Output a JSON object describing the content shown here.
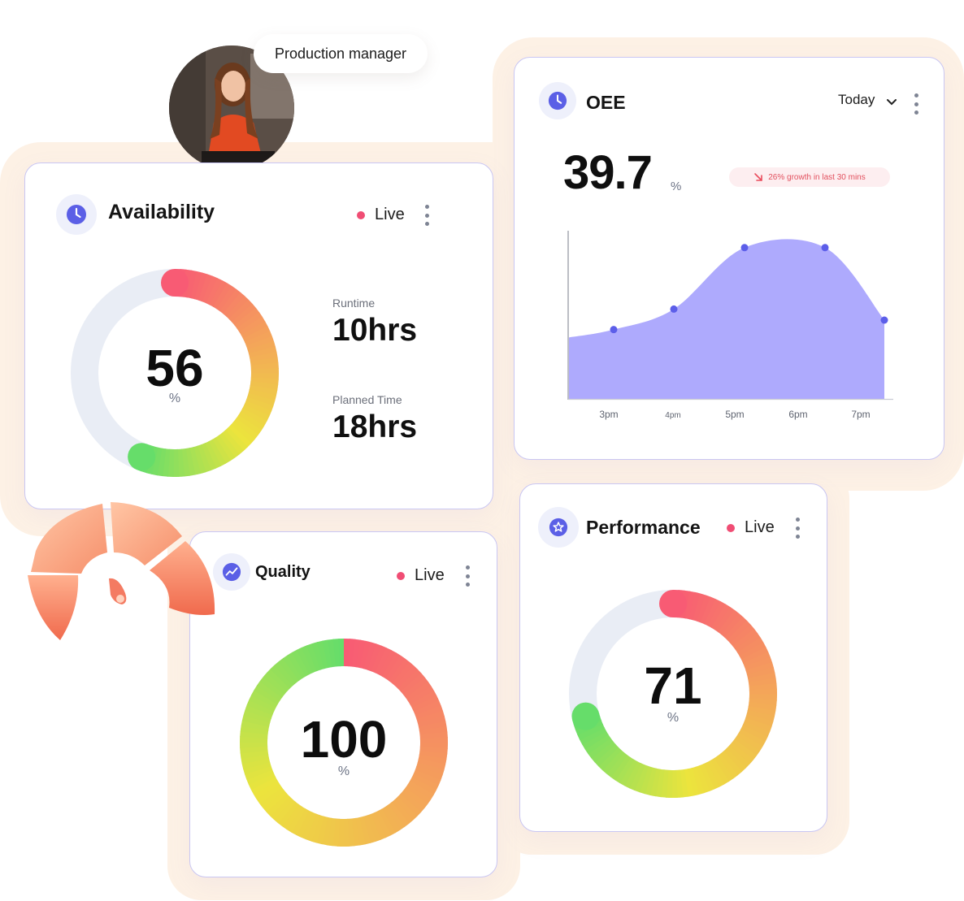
{
  "profile": {
    "role_label": "Production manager"
  },
  "availability": {
    "title": "Availability",
    "status": "Live",
    "value": "56",
    "percent": 56,
    "unit": "%",
    "stats": [
      {
        "label": "Runtime",
        "value": "10hrs"
      },
      {
        "label": "Planned Time",
        "value": "18hrs"
      }
    ]
  },
  "oee": {
    "title": "OEE",
    "period": "Today",
    "value": "39.7",
    "unit": "%",
    "trend_badge": "26% growth in last 30 mins"
  },
  "quality": {
    "title": "Quality",
    "status": "Live",
    "value": "100",
    "percent": 100,
    "unit": "%"
  },
  "performance": {
    "title": "Performance",
    "status": "Live",
    "value": "71",
    "percent": 71,
    "unit": "%"
  },
  "colors": {
    "accent": "#5b5fe6",
    "area_fill": "#aeaafd",
    "point": "#5c5ee9",
    "live_dot": "#f04d74",
    "gauge_red": "#f85b74",
    "gauge_orange": "#f4a35a",
    "gauge_yellow": "#ece43d",
    "gauge_green": "#66dd6a",
    "track": "#e9edf5",
    "card_border": "#c9c6f3",
    "backdrop": "#fdf1e5"
  },
  "chart_data": {
    "type": "area",
    "categories": [
      "3pm",
      "4pm",
      "5pm",
      "6pm",
      "7pm"
    ],
    "points": [
      {
        "x": "3pm",
        "y": 0.44
      },
      {
        "x": "4pm",
        "y": 0.57
      },
      {
        "x": "5pm",
        "y": 0.96
      },
      {
        "x": "6pm",
        "y": 0.96
      },
      {
        "x": "7pm",
        "y": 0.5
      }
    ],
    "ylim": [
      0,
      1
    ],
    "title": "",
    "xlabel": "",
    "ylabel": "",
    "grid": false
  }
}
